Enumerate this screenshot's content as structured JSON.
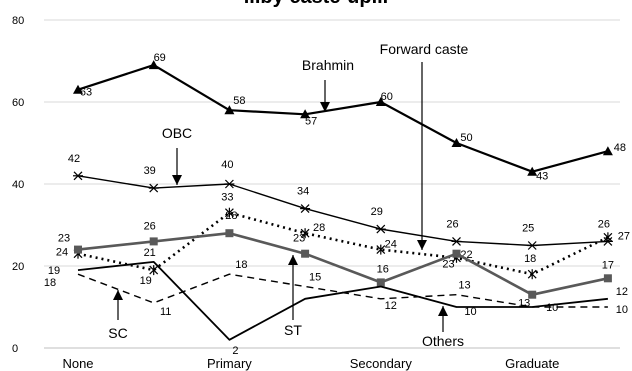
{
  "chart_data": {
    "type": "line",
    "title": "...by caste-up...",
    "categories": [
      "None",
      "",
      "Primary",
      "",
      "Secondary",
      "",
      "Graduate",
      ""
    ],
    "ylim": [
      0,
      80
    ],
    "yticks": [
      0,
      20,
      40,
      60,
      80
    ],
    "grid": true,
    "series": [
      {
        "name": "Brahmin",
        "style": "solid-bold",
        "marker": "triangle",
        "color": "#000000",
        "values": [
          63,
          69,
          58,
          57,
          60,
          50,
          43,
          48
        ]
      },
      {
        "name": "OBC",
        "style": "solid-thin",
        "marker": "star",
        "color": "#000000",
        "values": [
          42,
          39,
          40,
          34,
          29,
          26,
          25,
          26
        ]
      },
      {
        "name": "Forward caste",
        "style": "dotted-bold",
        "marker": "x",
        "color": "#000000",
        "values": [
          23,
          19,
          33,
          28,
          24,
          22,
          18,
          27
        ]
      },
      {
        "name": "ST",
        "style": "solid-gray",
        "marker": "square",
        "color": "#555555",
        "values": [
          24,
          26,
          28,
          23,
          16,
          23,
          13,
          17
        ]
      },
      {
        "name": "SC",
        "style": "dashed",
        "marker": "none",
        "color": "#000000",
        "values": [
          18,
          11,
          18,
          15,
          12,
          13,
          10,
          10
        ]
      },
      {
        "name": "Others",
        "style": "solid",
        "marker": "none",
        "color": "#000000",
        "values": [
          19,
          21,
          2,
          12,
          15,
          10,
          10,
          12
        ]
      }
    ],
    "annotations": [
      {
        "text": "Brahmin"
      },
      {
        "text": "OBC"
      },
      {
        "text": "Forward caste"
      },
      {
        "text": "SC"
      },
      {
        "text": "ST"
      },
      {
        "text": "Others"
      }
    ]
  }
}
